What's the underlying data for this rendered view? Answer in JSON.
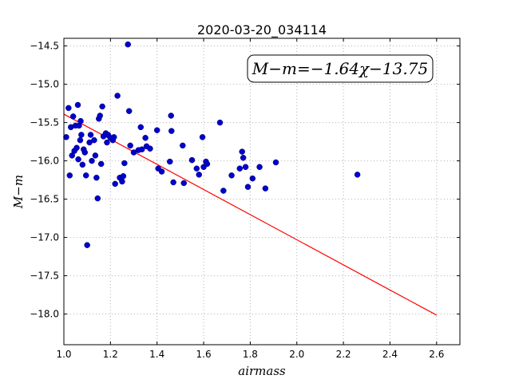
{
  "chart_data": {
    "type": "scatter",
    "title": "2020-03-20_034114",
    "xlabel": "airmass",
    "ylabel": "M−m",
    "xlim": [
      1.0,
      2.7
    ],
    "ylim": [
      -18.4,
      -14.4
    ],
    "grid": true,
    "x_ticks": [
      1.0,
      1.2,
      1.4,
      1.6,
      1.8,
      2.0,
      2.2,
      2.4,
      2.6
    ],
    "x_tick_labels": [
      "1.0",
      "1.2",
      "1.4",
      "1.6",
      "1.8",
      "2.0",
      "2.2",
      "2.4",
      "2.6"
    ],
    "y_ticks": [
      -14.5,
      -15.0,
      -15.5,
      -16.0,
      -16.5,
      -17.0,
      -17.5,
      -18.0
    ],
    "y_tick_labels": [
      "−14.5",
      "−15.0",
      "−15.5",
      "−16.0",
      "−16.5",
      "−17.0",
      "−17.5",
      "−18.0"
    ],
    "annotation": "M−m=−1.64χ−13.75",
    "annotation_placement": "top-right",
    "colors": {
      "points": "#0000cc",
      "fit": "#ff0000"
    },
    "fit_line": {
      "slope": -1.64,
      "intercept": -13.75,
      "x_range": [
        1.0,
        2.6
      ]
    },
    "series": [
      {
        "points": [
          [
            1.01,
            -15.69
          ],
          [
            1.02,
            -15.31
          ],
          [
            1.025,
            -16.19
          ],
          [
            1.03,
            -15.56
          ],
          [
            1.035,
            -15.93
          ],
          [
            1.04,
            -15.42
          ],
          [
            1.045,
            -15.87
          ],
          [
            1.05,
            -15.54
          ],
          [
            1.055,
            -15.83
          ],
          [
            1.06,
            -15.27
          ],
          [
            1.062,
            -15.98
          ],
          [
            1.065,
            -15.54
          ],
          [
            1.07,
            -15.73
          ],
          [
            1.072,
            -15.48
          ],
          [
            1.075,
            -15.66
          ],
          [
            1.08,
            -16.05
          ],
          [
            1.085,
            -15.85
          ],
          [
            1.09,
            -15.89
          ],
          [
            1.095,
            -16.19
          ],
          [
            1.1,
            -17.1
          ],
          [
            1.11,
            -15.76
          ],
          [
            1.115,
            -15.66
          ],
          [
            1.12,
            -16.0
          ],
          [
            1.13,
            -15.73
          ],
          [
            1.135,
            -15.93
          ],
          [
            1.14,
            -16.22
          ],
          [
            1.145,
            -16.49
          ],
          [
            1.15,
            -15.45
          ],
          [
            1.155,
            -15.41
          ],
          [
            1.16,
            -16.04
          ],
          [
            1.165,
            -15.29
          ],
          [
            1.17,
            -15.68
          ],
          [
            1.18,
            -15.64
          ],
          [
            1.185,
            -15.76
          ],
          [
            1.19,
            -15.66
          ],
          [
            1.2,
            -15.7
          ],
          [
            1.21,
            -15.73
          ],
          [
            1.215,
            -15.69
          ],
          [
            1.22,
            -16.3
          ],
          [
            1.23,
            -15.15
          ],
          [
            1.24,
            -16.22
          ],
          [
            1.25,
            -16.27
          ],
          [
            1.255,
            -16.2
          ],
          [
            1.26,
            -16.03
          ],
          [
            1.275,
            -14.48
          ],
          [
            1.28,
            -15.35
          ],
          [
            1.285,
            -15.8
          ],
          [
            1.3,
            -15.89
          ],
          [
            1.32,
            -15.86
          ],
          [
            1.33,
            -15.56
          ],
          [
            1.335,
            -15.85
          ],
          [
            1.35,
            -15.7
          ],
          [
            1.355,
            -15.81
          ],
          [
            1.37,
            -15.84
          ],
          [
            1.4,
            -15.6
          ],
          [
            1.405,
            -16.1
          ],
          [
            1.42,
            -16.14
          ],
          [
            1.455,
            -16.01
          ],
          [
            1.46,
            -15.41
          ],
          [
            1.462,
            -15.61
          ],
          [
            1.47,
            -16.28
          ],
          [
            1.51,
            -15.8
          ],
          [
            1.515,
            -16.29
          ],
          [
            1.55,
            -15.99
          ],
          [
            1.57,
            -16.1
          ],
          [
            1.58,
            -16.18
          ],
          [
            1.595,
            -15.69
          ],
          [
            1.6,
            -16.08
          ],
          [
            1.61,
            -16.01
          ],
          [
            1.615,
            -16.04
          ],
          [
            1.67,
            -15.5
          ],
          [
            1.685,
            -16.39
          ],
          [
            1.72,
            -16.19
          ],
          [
            1.755,
            -16.1
          ],
          [
            1.765,
            -15.88
          ],
          [
            1.77,
            -15.96
          ],
          [
            1.78,
            -16.08
          ],
          [
            1.79,
            -16.34
          ],
          [
            1.81,
            -16.23
          ],
          [
            1.84,
            -16.08
          ],
          [
            1.865,
            -16.36
          ],
          [
            1.91,
            -16.02
          ],
          [
            2.26,
            -16.18
          ]
        ]
      }
    ]
  }
}
